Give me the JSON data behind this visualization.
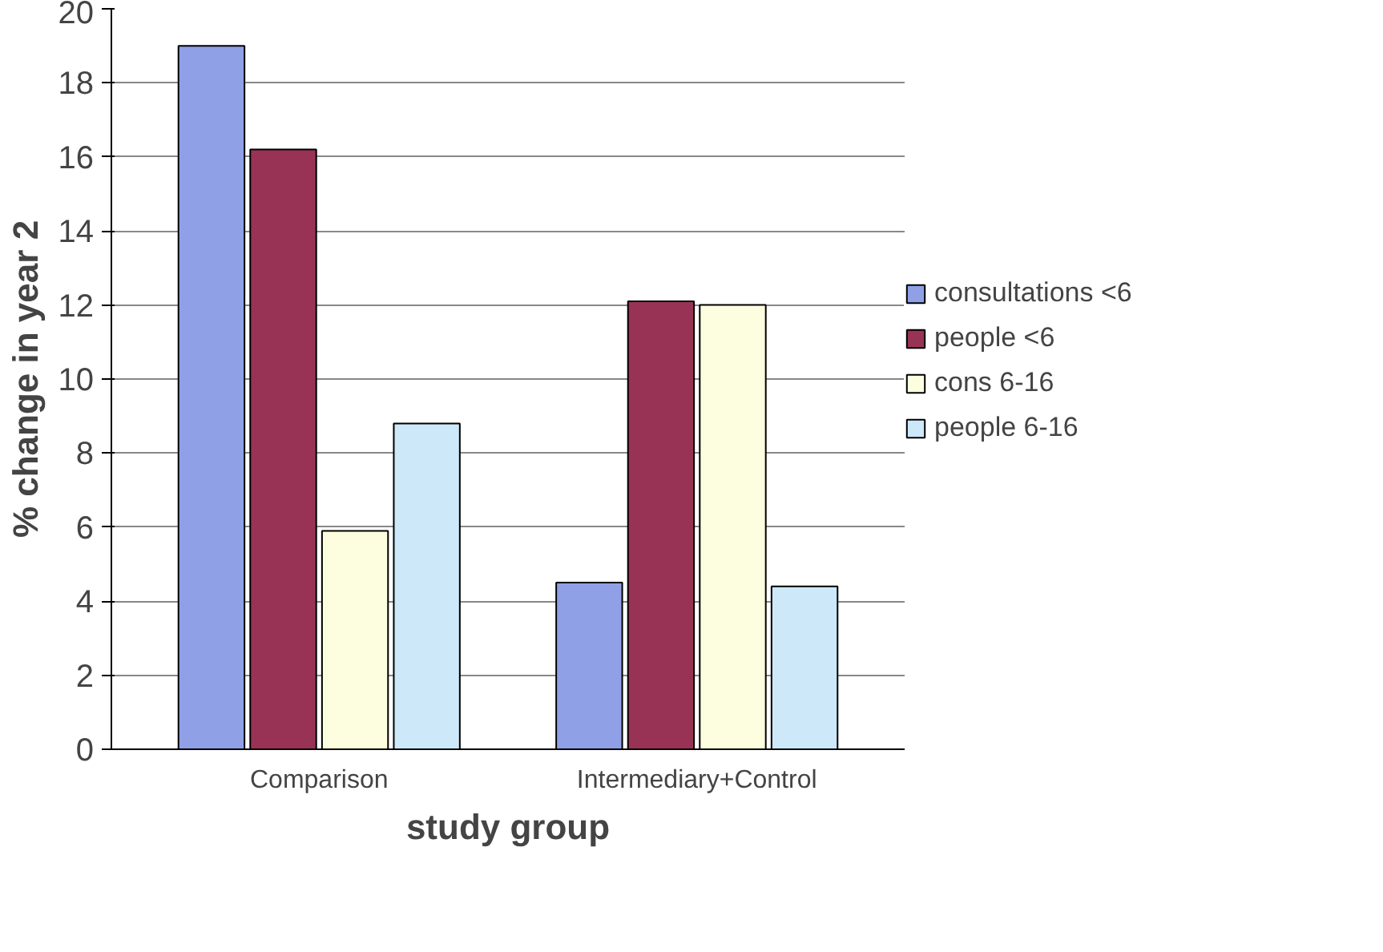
{
  "chart_data": {
    "type": "bar",
    "xlabel": "study group",
    "ylabel": "% change in year 2",
    "categories": [
      "Comparison",
      "Intermediary+Control"
    ],
    "series": [
      {
        "name": "consultations <6",
        "color": "#8fa0e6",
        "values": [
          19.0,
          4.5
        ]
      },
      {
        "name": "people <6",
        "color": "#993355",
        "values": [
          16.2,
          12.1
        ]
      },
      {
        "name": "cons 6-16",
        "color": "#fdfde0",
        "values": [
          5.9,
          12.0
        ]
      },
      {
        "name": "people 6-16",
        "color": "#cde8f8",
        "values": [
          8.8,
          4.4
        ]
      }
    ],
    "ylim": [
      0,
      20
    ],
    "yticks": [
      0,
      2,
      4,
      6,
      8,
      10,
      12,
      14,
      16,
      18,
      20
    ],
    "grid": "y",
    "legend": "right"
  }
}
